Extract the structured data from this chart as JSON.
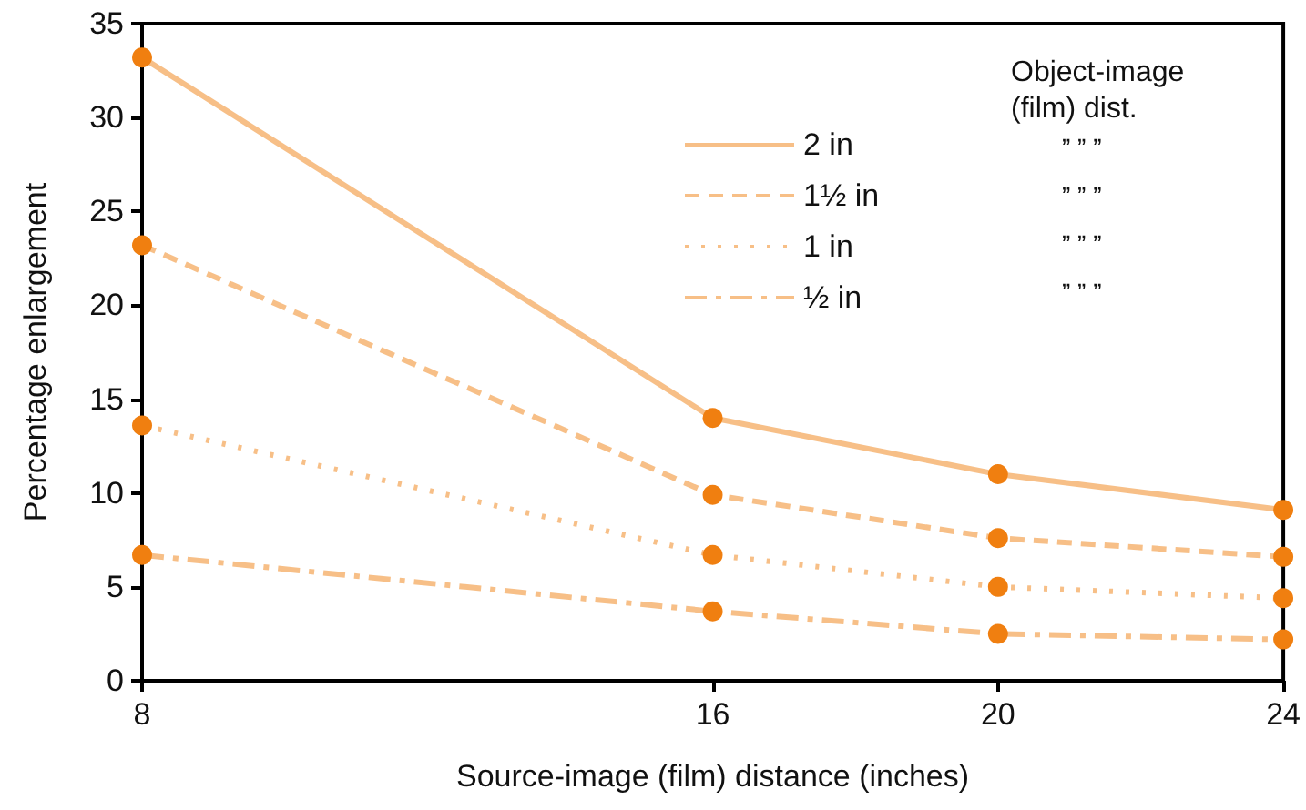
{
  "chart_data": {
    "type": "line",
    "xlabel": "Source-image (film) distance (inches)",
    "ylabel": "Percentage enlargement",
    "x": [
      8,
      16,
      20,
      24
    ],
    "series": [
      {
        "name": "2 in",
        "color": "#f07f10",
        "line_style": "solid",
        "values": [
          33.2,
          14,
          11,
          9.1
        ]
      },
      {
        "name": "1½ in",
        "color": "#f07f10",
        "line_style": "dashed",
        "values": [
          23.2,
          9.9,
          7.6,
          6.6
        ]
      },
      {
        "name": "1 in",
        "color": "#f07f10",
        "line_style": "dotted",
        "values": [
          13.6,
          6.7,
          5,
          4.4
        ]
      },
      {
        "name": "½ in",
        "color": "#f07f10",
        "line_style": "dashdot",
        "values": [
          6.7,
          3.7,
          2.5,
          2.2
        ]
      }
    ],
    "legend": "top right",
    "legend_title": "Object-image\n(film) dist.",
    "annotations": [
      "” ” ”",
      "” ” ”",
      "” ” ”",
      "” ” ”"
    ],
    "marker": "circle",
    "grid": false,
    "xlim": [
      8,
      24
    ],
    "xticks": [
      8,
      16,
      20,
      24
    ],
    "ylim": [
      0,
      35
    ],
    "yticks": [
      0,
      5,
      10,
      15,
      20,
      25,
      30,
      35
    ]
  }
}
